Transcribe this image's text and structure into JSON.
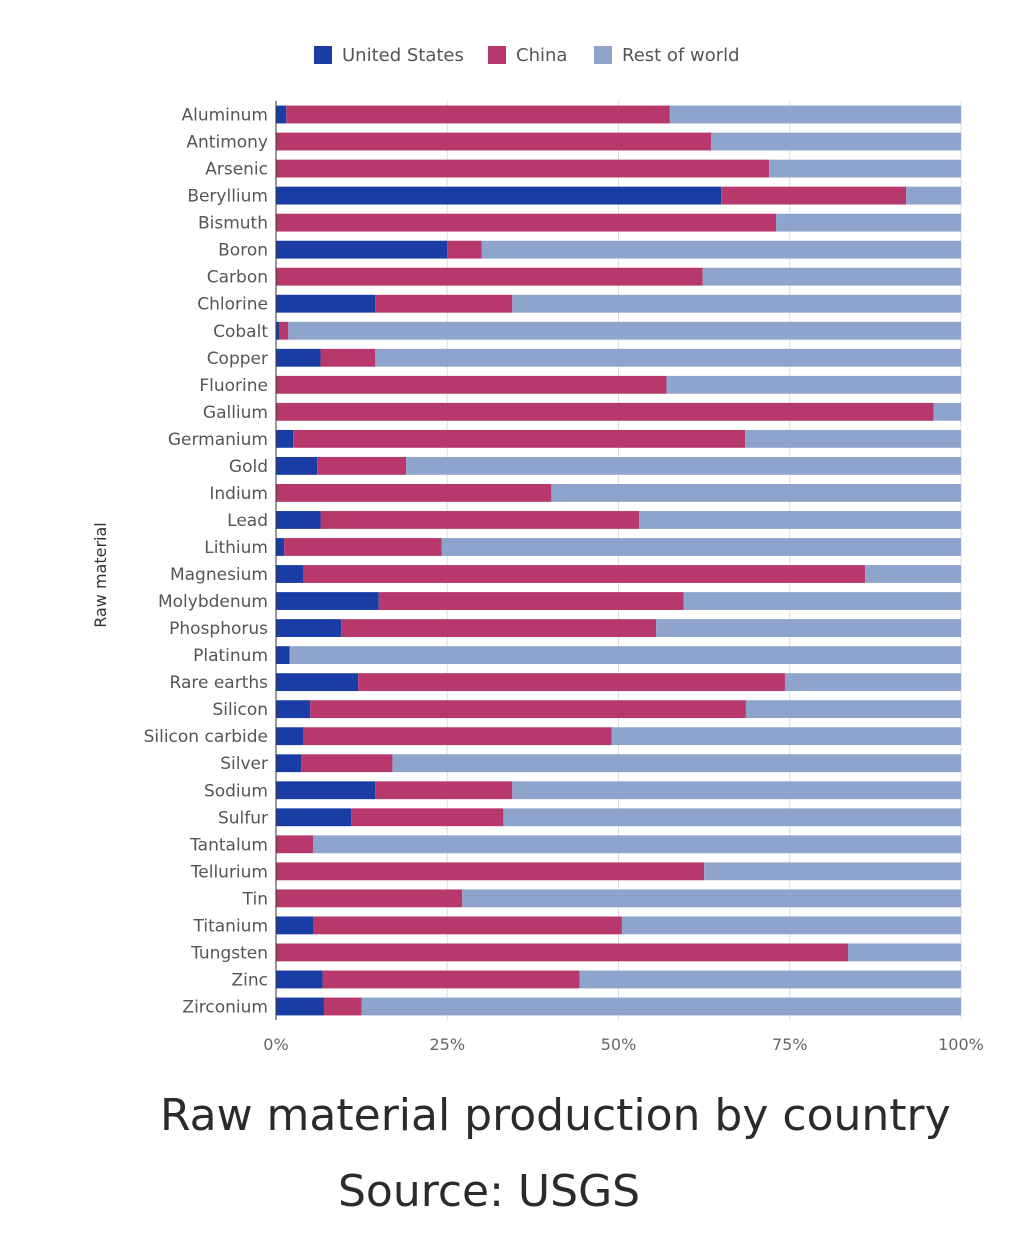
{
  "chart_data": {
    "type": "bar",
    "orientation": "horizontal",
    "stacked": "percent",
    "ylabel": "Raw material",
    "xlim": [
      0,
      100
    ],
    "x_ticks": [
      "0%",
      "25%",
      "50%",
      "75%",
      "100%"
    ],
    "legend_position": "top",
    "categories": [
      "Aluminum",
      "Antimony",
      "Arsenic",
      "Beryllium",
      "Bismuth",
      "Boron",
      "Carbon",
      "Chlorine",
      "Cobalt",
      "Copper",
      "Fluorine",
      "Gallium",
      "Germanium",
      "Gold",
      "Indium",
      "Lead",
      "Lithium",
      "Magnesium",
      "Molybdenum",
      "Phosphorus",
      "Platinum",
      "Rare earths",
      "Silicon",
      "Silicon carbide",
      "Silver",
      "Sodium",
      "Sulfur",
      "Tantalum",
      "Tellurium",
      "Tin",
      "Titanium",
      "Tungsten",
      "Zinc",
      "Zirconium"
    ],
    "series": [
      {
        "name": "United States",
        "color": "#1a3da5",
        "values": [
          1.5,
          0,
          0,
          65,
          0,
          25,
          0,
          14.5,
          0.5,
          6.5,
          0,
          0,
          2.5,
          6,
          0,
          6.5,
          1.2,
          4,
          15,
          9.5,
          2,
          12,
          5,
          4,
          3.7,
          14.5,
          11,
          0,
          0,
          0,
          5.5,
          0,
          6.8,
          7
        ]
      },
      {
        "name": "China",
        "color": "#b7386b",
        "values": [
          56,
          63.5,
          72,
          27,
          73,
          5,
          62.3,
          20,
          1.3,
          8,
          57,
          96,
          66,
          13,
          40.2,
          46.5,
          23,
          82,
          44.5,
          46,
          0,
          62.3,
          63.6,
          45,
          13.3,
          20,
          22.2,
          5.4,
          62.5,
          27.2,
          45,
          83.5,
          37.5,
          5.5
        ]
      },
      {
        "name": "Rest of world",
        "color": "#8ea4cd",
        "values": [
          42.5,
          36.5,
          28,
          8,
          27,
          70,
          37.7,
          65.5,
          98.2,
          85.5,
          43,
          4,
          31.5,
          81,
          59.8,
          47,
          75.8,
          14,
          40.5,
          44.5,
          98,
          25.7,
          31.4,
          51,
          83,
          65.5,
          66.8,
          94.6,
          37.5,
          72.8,
          49.5,
          16.5,
          55.7,
          87.5
        ]
      }
    ]
  },
  "caption": {
    "title": "Raw material production by country",
    "source": "Source: USGS"
  }
}
